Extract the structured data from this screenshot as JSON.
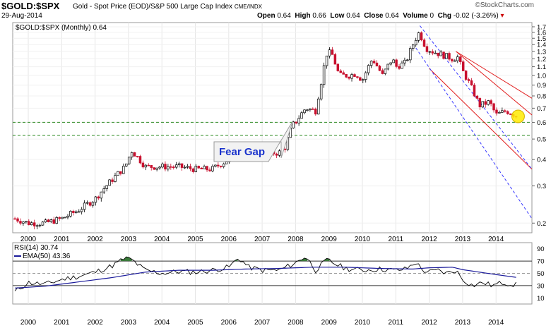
{
  "header": {
    "symbol": "$GOLD:$SPX",
    "description": "Gold - Spot Price (EOD)/S&P 500 Large Cap Index",
    "exchange": "CME/INDX",
    "logo": "©StockCharts.com",
    "date": "29-Aug-2014",
    "open_label": "Open",
    "open": "0.64",
    "high_label": "High",
    "high": "0.66",
    "low_label": "Low",
    "low": "0.64",
    "close_label": "Close",
    "close": "0.64",
    "volume_label": "Volume",
    "volume": "0",
    "chg_label": "Chg",
    "chg": "-0.02 (-3.26%)",
    "chg_icon": "down-triangle-icon"
  },
  "colors": {
    "up": "#000000",
    "down": "#c8102e",
    "accent": "#1a33cc",
    "gap": "#2e8b22",
    "channel_red": "#e22020",
    "channel_blue": "#3a3aff",
    "rsi_fill": "#3a7a3a",
    "highlight": "#ffeb00"
  },
  "chart_data": [
    {
      "type": "candlestick",
      "legend": "$GOLD:$SPX (Monthly) 0.64",
      "x_ticks": [
        "2000",
        "2001",
        "2002",
        "2003",
        "2004",
        "2005",
        "2006",
        "2007",
        "2008",
        "2009",
        "2010",
        "2011",
        "2012",
        "2013",
        "2014"
      ],
      "y_ticks": [
        0.2,
        0.3,
        0.4,
        0.5,
        0.6,
        0.7,
        0.8,
        0.9,
        1.0,
        1.1,
        1.2,
        1.3,
        1.4,
        1.5,
        1.6,
        1.7
      ],
      "y_scale": "log",
      "ylim": [
        0.18,
        1.78
      ],
      "annotation": "Fear Gap",
      "gap_levels": [
        0.52,
        0.6
      ],
      "close_anchors": [
        [
          1999.6,
          0.21
        ],
        [
          2000.0,
          0.2
        ],
        [
          2000.5,
          0.2
        ],
        [
          2001.0,
          0.21
        ],
        [
          2001.5,
          0.23
        ],
        [
          2002.0,
          0.26
        ],
        [
          2002.5,
          0.32
        ],
        [
          2002.9,
          0.37
        ],
        [
          2003.1,
          0.44
        ],
        [
          2003.5,
          0.37
        ],
        [
          2004.0,
          0.37
        ],
        [
          2004.5,
          0.37
        ],
        [
          2005.0,
          0.36
        ],
        [
          2005.5,
          0.36
        ],
        [
          2006.0,
          0.4
        ],
        [
          2006.3,
          0.47
        ],
        [
          2006.6,
          0.44
        ],
        [
          2007.0,
          0.43
        ],
        [
          2007.5,
          0.43
        ],
        [
          2007.7,
          0.46
        ],
        [
          2007.9,
          0.58
        ],
        [
          2008.0,
          0.6
        ],
        [
          2008.3,
          0.7
        ],
        [
          2008.6,
          0.68
        ],
        [
          2008.75,
          0.9
        ],
        [
          2008.95,
          1.3
        ],
        [
          2009.1,
          1.25
        ],
        [
          2009.3,
          1.0
        ],
        [
          2009.6,
          1.0
        ],
        [
          2009.8,
          1.02
        ],
        [
          2010.0,
          0.95
        ],
        [
          2010.3,
          1.2
        ],
        [
          2010.6,
          1.0
        ],
        [
          2010.9,
          1.2
        ],
        [
          2011.0,
          1.1
        ],
        [
          2011.3,
          1.15
        ],
        [
          2011.6,
          1.5
        ],
        [
          2011.7,
          1.6
        ],
        [
          2011.9,
          1.35
        ],
        [
          2012.1,
          1.3
        ],
        [
          2012.4,
          1.25
        ],
        [
          2012.7,
          1.2
        ],
        [
          2012.85,
          1.22
        ],
        [
          2013.0,
          1.05
        ],
        [
          2013.3,
          0.85
        ],
        [
          2013.5,
          0.72
        ],
        [
          2013.8,
          0.75
        ],
        [
          2014.0,
          0.65
        ],
        [
          2014.3,
          0.68
        ],
        [
          2014.66,
          0.64
        ]
      ]
    },
    {
      "type": "line",
      "legend_rsi": "RSI(14) 30.74",
      "legend_ema": "EMA(50) 43.36",
      "y_ticks": [
        10,
        30,
        50,
        70,
        90
      ],
      "ylim": [
        0,
        100
      ],
      "levels": [
        30,
        50,
        70
      ],
      "series": [
        {
          "name": "RSI(14)",
          "values_anchor": [
            [
              1999.6,
              20
            ],
            [
              2000.0,
              35
            ],
            [
              2000.5,
              32
            ],
            [
              2001.0,
              40
            ],
            [
              2001.5,
              45
            ],
            [
              2002.0,
              52
            ],
            [
              2002.5,
              62
            ],
            [
              2002.9,
              75
            ],
            [
              2003.1,
              72
            ],
            [
              2003.5,
              55
            ],
            [
              2004.0,
              50
            ],
            [
              2004.5,
              53
            ],
            [
              2005.0,
              52
            ],
            [
              2005.5,
              55
            ],
            [
              2006.0,
              60
            ],
            [
              2006.3,
              75
            ],
            [
              2006.6,
              60
            ],
            [
              2007.0,
              55
            ],
            [
              2007.5,
              55
            ],
            [
              2007.8,
              62
            ],
            [
              2008.0,
              67
            ],
            [
              2008.3,
              78
            ],
            [
              2008.6,
              55
            ],
            [
              2008.8,
              65
            ],
            [
              2008.95,
              72
            ],
            [
              2009.2,
              65
            ],
            [
              2009.5,
              58
            ],
            [
              2010.0,
              55
            ],
            [
              2010.5,
              57
            ],
            [
              2011.0,
              55
            ],
            [
              2011.3,
              57
            ],
            [
              2011.6,
              68
            ],
            [
              2011.8,
              55
            ],
            [
              2012.0,
              52
            ],
            [
              2012.3,
              55
            ],
            [
              2012.5,
              50
            ],
            [
              2012.8,
              55
            ],
            [
              2013.0,
              40
            ],
            [
              2013.3,
              30
            ],
            [
              2013.6,
              35
            ],
            [
              2013.9,
              30
            ],
            [
              2014.2,
              35
            ],
            [
              2014.5,
              32
            ],
            [
              2014.66,
              31
            ]
          ]
        },
        {
          "name": "EMA(50)",
          "values_anchor": [
            [
              1999.6,
              26
            ],
            [
              2000.5,
              29
            ],
            [
              2001.5,
              36
            ],
            [
              2002.5,
              43
            ],
            [
              2003.5,
              52
            ],
            [
              2004.5,
              55
            ],
            [
              2005.5,
              55
            ],
            [
              2006.5,
              57
            ],
            [
              2007.5,
              58
            ],
            [
              2008.5,
              60
            ],
            [
              2009.5,
              60
            ],
            [
              2010.5,
              58
            ],
            [
              2011.5,
              57
            ],
            [
              2012.0,
              59
            ],
            [
              2012.7,
              60
            ],
            [
              2013.0,
              56
            ],
            [
              2013.5,
              52
            ],
            [
              2014.0,
              48
            ],
            [
              2014.66,
              43
            ]
          ]
        }
      ]
    }
  ]
}
